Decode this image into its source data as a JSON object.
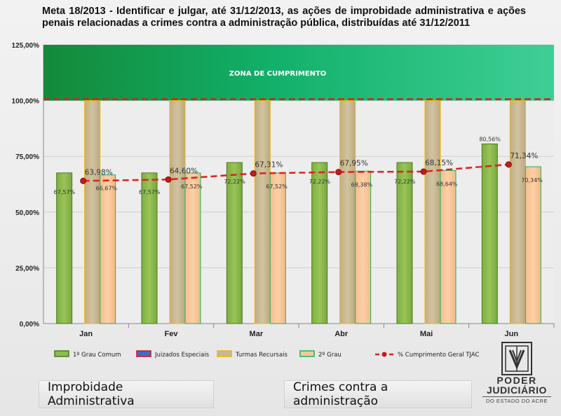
{
  "title": "Meta 18/2013 - Identificar e julgar, até 31/12/2013, as ações de improbidade administrativa e ações penais relacionadas a crimes contra a administração pública, distribuídas até 31/12/2011",
  "chart_data": {
    "type": "bar",
    "categories": [
      "Jan",
      "Fev",
      "Mar",
      "Abr",
      "Mai",
      "Jun"
    ],
    "ylim": [
      0,
      125
    ],
    "yticks": [
      "0,00%",
      "25,00%",
      "50,00%",
      "75,00%",
      "100,00%",
      "125,00%"
    ],
    "zone_label": "ZONA DE CUMPRIMENTO",
    "zone_range": [
      100,
      125
    ],
    "target_line": 100,
    "series": [
      {
        "name": "1º Grau Comum",
        "values": [
          67.57,
          67.57,
          72.22,
          72.22,
          72.22,
          80.56
        ],
        "labels": [
          "67,57%",
          "67,57%",
          "72,22%",
          "72,22%",
          "72,22%",
          "80,56%"
        ],
        "color": "#8fbb4e"
      },
      {
        "name": "Juizados Especiais",
        "values": [
          0,
          0,
          0,
          0,
          0,
          0
        ],
        "labels": [
          "",
          "",
          "",
          "",
          "",
          ""
        ],
        "color": "#3a6fc4"
      },
      {
        "name": "Turmas Recursais",
        "values": [
          100,
          100,
          100,
          100,
          100,
          100
        ],
        "labels": [
          "",
          "",
          "",
          "",
          "",
          ""
        ],
        "color": "#c8b894"
      },
      {
        "name": "2º Grau",
        "values": [
          66.67,
          67.52,
          67.52,
          68.38,
          68.64,
          70.34
        ],
        "labels": [
          "66,67%",
          "67,52%",
          "67,52%",
          "68,38%",
          "68,64%",
          "70,34%"
        ],
        "color": "#f8c79a"
      },
      {
        "name": "% Cumprimento Geral TJAC",
        "values": [
          63.98,
          64.6,
          67.31,
          67.95,
          68.15,
          71.34
        ],
        "labels": [
          "63,98%",
          "64,60%",
          "67,31%",
          "67,95%",
          "68,15%",
          "71,34%"
        ],
        "color": "#e02020",
        "kind": "line"
      }
    ]
  },
  "footer": {
    "left": "Improbidade Administrativa",
    "right": "Crimes contra a administração"
  },
  "logo": {
    "line1": "PODER",
    "line2": "JUDICIÁRIO",
    "line3": "DO ESTADO DO ACRE"
  }
}
